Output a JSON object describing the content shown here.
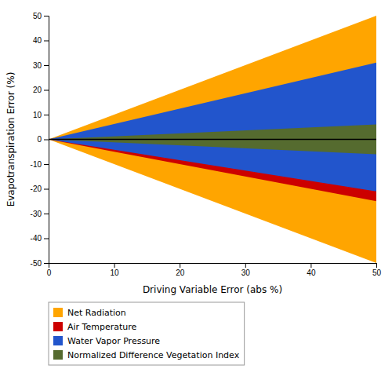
{
  "chart_data": {
    "type": "area",
    "x": [
      0,
      50
    ],
    "series": [
      {
        "name": "Net Radiation",
        "color": "#FFA500",
        "values": [
          0,
          50
        ],
        "lower": [
          0,
          -50
        ]
      },
      {
        "name": "Air Temperature",
        "color": "#CC0000",
        "values": [
          0,
          25
        ],
        "lower": [
          0,
          -25
        ]
      },
      {
        "name": "Water Vapor Pressure",
        "color": "#2255CC",
        "values": [
          0,
          31
        ],
        "lower": [
          0,
          -21
        ]
      },
      {
        "name": "Normalized Difference Vegetation Index",
        "color": "#556B2F",
        "values": [
          0,
          6
        ],
        "lower": [
          0,
          -6
        ]
      }
    ],
    "hlines": [
      0
    ],
    "xlabel": "Driving Variable Error (abs %)",
    "ylabel": "Evapotranspiration Error (%)",
    "xlim": [
      0,
      50
    ],
    "ylim": [
      -50,
      50
    ],
    "xticks": [
      0,
      10,
      20,
      30,
      40,
      50
    ],
    "yticks": [
      -50,
      -40,
      -30,
      -20,
      -10,
      0,
      10,
      20,
      30,
      40,
      50
    ],
    "legend": "lower left",
    "grid": false
  }
}
